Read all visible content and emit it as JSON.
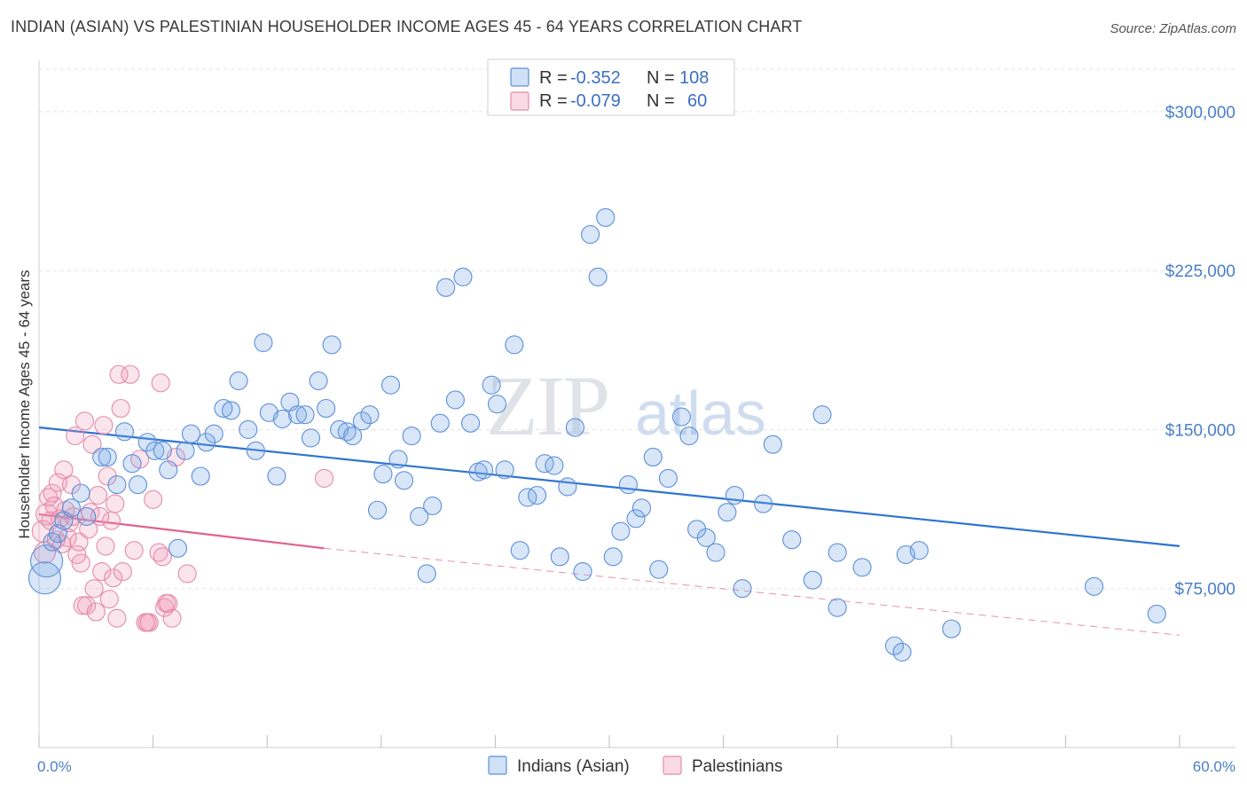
{
  "title": "INDIAN (ASIAN) VS PALESTINIAN HOUSEHOLDER INCOME AGES 45 - 64 YEARS CORRELATION CHART",
  "source": "Source: ZipAtlas.com",
  "watermark": {
    "zip": "ZIP",
    "atlas": "atlas"
  },
  "colors": {
    "blue": "#5b8fd8",
    "blue_fill": "rgba(120,165,230,0.28)",
    "blue_line": "#2f74d0",
    "pink": "#e68aa8",
    "pink_fill": "rgba(240,150,180,0.25)",
    "pink_line": "#e0628c",
    "grid": "#e3e3e3",
    "tick_text": "#4a7fc8"
  },
  "legend_top": {
    "rows": [
      {
        "r_label": "R = ",
        "r_value": "-0.352",
        "n_label": "N = ",
        "n_value": "108"
      },
      {
        "r_label": "R = ",
        "r_value": "-0.079",
        "n_label": "N = ",
        "n_value": "60"
      }
    ]
  },
  "chart_data": {
    "type": "scatter",
    "xlabel": "",
    "ylabel": "Householder Income Ages 45 - 64 years",
    "xlim": [
      0,
      60
    ],
    "ylim": [
      0,
      320000
    ],
    "x_tick_labels": [
      "0.0%",
      "60.0%"
    ],
    "y_ticks": [
      75000,
      150000,
      225000,
      300000
    ],
    "y_tick_labels": [
      "$75,000",
      "$150,000",
      "$225,000",
      "$300,000"
    ],
    "grid": true,
    "legend": "bottom",
    "series": [
      {
        "name": "Indians (Asian)",
        "color": "#5b8fd8",
        "trend": {
          "x": [
            0,
            60
          ],
          "y": [
            151000,
            95000
          ]
        },
        "points": [
          [
            0.4,
            88000,
            18
          ],
          [
            0.3,
            80000,
            18
          ],
          [
            0.7,
            97000,
            10
          ],
          [
            1.0,
            101000,
            10
          ],
          [
            1.3,
            107000,
            10
          ],
          [
            1.7,
            113000,
            10
          ],
          [
            2.2,
            120000,
            10
          ],
          [
            2.5,
            109000,
            10
          ],
          [
            3.3,
            137000,
            10
          ],
          [
            3.6,
            137000,
            10
          ],
          [
            4.1,
            124000,
            10
          ],
          [
            4.5,
            149000,
            10
          ],
          [
            4.9,
            134000,
            10
          ],
          [
            5.2,
            124000,
            10
          ],
          [
            5.7,
            144000,
            10
          ],
          [
            6.1,
            140000,
            10
          ],
          [
            6.5,
            140000,
            10
          ],
          [
            6.8,
            131000,
            10
          ],
          [
            7.3,
            94000,
            10
          ],
          [
            7.7,
            140000,
            10
          ],
          [
            8.0,
            148000,
            10
          ],
          [
            8.5,
            128000,
            10
          ],
          [
            8.8,
            144000,
            10
          ],
          [
            9.2,
            148000,
            10
          ],
          [
            9.7,
            160000,
            10
          ],
          [
            10.1,
            159000,
            10
          ],
          [
            10.5,
            173000,
            10
          ],
          [
            11.0,
            150000,
            10
          ],
          [
            11.4,
            140000,
            10
          ],
          [
            11.8,
            191000,
            10
          ],
          [
            12.1,
            158000,
            10
          ],
          [
            12.5,
            128000,
            10
          ],
          [
            12.8,
            155000,
            10
          ],
          [
            13.2,
            163000,
            10
          ],
          [
            13.6,
            157000,
            10
          ],
          [
            14.0,
            157000,
            10
          ],
          [
            14.3,
            146000,
            10
          ],
          [
            14.7,
            173000,
            10
          ],
          [
            15.1,
            160000,
            10
          ],
          [
            15.4,
            190000,
            10
          ],
          [
            15.8,
            150000,
            10
          ],
          [
            16.2,
            149000,
            10
          ],
          [
            16.5,
            147000,
            10
          ],
          [
            17.0,
            154000,
            10
          ],
          [
            17.4,
            157000,
            10
          ],
          [
            17.8,
            112000,
            10
          ],
          [
            18.1,
            129000,
            10
          ],
          [
            18.5,
            171000,
            10
          ],
          [
            18.9,
            136000,
            10
          ],
          [
            19.2,
            126000,
            10
          ],
          [
            19.6,
            147000,
            10
          ],
          [
            20.0,
            109000,
            10
          ],
          [
            20.4,
            82000,
            10
          ],
          [
            20.7,
            114000,
            10
          ],
          [
            21.1,
            153000,
            10
          ],
          [
            21.4,
            217000,
            10
          ],
          [
            21.9,
            164000,
            10
          ],
          [
            22.3,
            222000,
            10
          ],
          [
            22.7,
            153000,
            10
          ],
          [
            23.1,
            130000,
            10
          ],
          [
            23.4,
            131000,
            10
          ],
          [
            23.8,
            171000,
            10
          ],
          [
            24.1,
            162000,
            10
          ],
          [
            24.5,
            131000,
            10
          ],
          [
            25.0,
            190000,
            10
          ],
          [
            25.3,
            93000,
            10
          ],
          [
            25.7,
            118000,
            10
          ],
          [
            26.2,
            119000,
            10
          ],
          [
            26.6,
            134000,
            10
          ],
          [
            27.1,
            133000,
            10
          ],
          [
            27.4,
            90000,
            10
          ],
          [
            27.8,
            123000,
            10
          ],
          [
            28.2,
            151000,
            10
          ],
          [
            28.6,
            83000,
            10
          ],
          [
            29.0,
            242000,
            10
          ],
          [
            29.4,
            222000,
            10
          ],
          [
            29.8,
            250000,
            10
          ],
          [
            30.2,
            90000,
            10
          ],
          [
            30.6,
            102000,
            10
          ],
          [
            31.0,
            124000,
            10
          ],
          [
            31.4,
            108000,
            10
          ],
          [
            31.7,
            113000,
            10
          ],
          [
            32.3,
            137000,
            10
          ],
          [
            32.6,
            84000,
            10
          ],
          [
            33.1,
            127000,
            10
          ],
          [
            33.8,
            156000,
            10
          ],
          [
            34.2,
            147000,
            10
          ],
          [
            34.6,
            103000,
            10
          ],
          [
            35.1,
            99000,
            10
          ],
          [
            35.6,
            92000,
            10
          ],
          [
            36.2,
            111000,
            10
          ],
          [
            36.6,
            119000,
            10
          ],
          [
            37.0,
            75000,
            10
          ],
          [
            38.1,
            115000,
            10
          ],
          [
            38.6,
            143000,
            10
          ],
          [
            39.6,
            98000,
            10
          ],
          [
            40.7,
            79000,
            10
          ],
          [
            41.2,
            157000,
            10
          ],
          [
            42.0,
            66000,
            10
          ],
          [
            42.0,
            92000,
            10
          ],
          [
            43.3,
            85000,
            10
          ],
          [
            45.0,
            48000,
            10
          ],
          [
            45.4,
            45000,
            10
          ],
          [
            45.6,
            91000,
            10
          ],
          [
            46.3,
            93000,
            10
          ],
          [
            48.0,
            56000,
            10
          ],
          [
            55.5,
            76000,
            10
          ],
          [
            58.8,
            63000,
            10
          ]
        ]
      },
      {
        "name": "Palestinians",
        "color": "#e68aa8",
        "trend": {
          "x": [
            0,
            15
          ],
          "y": [
            110000,
            94000
          ]
        },
        "trend_extended": {
          "x": [
            15,
            60
          ],
          "y": [
            94000,
            53000
          ]
        },
        "points": [
          [
            0.2,
            102000,
            12
          ],
          [
            0.3,
            92000,
            12
          ],
          [
            0.4,
            110000,
            12
          ],
          [
            0.5,
            118000,
            10
          ],
          [
            0.6,
            107000,
            10
          ],
          [
            0.7,
            120000,
            10
          ],
          [
            0.8,
            114000,
            10
          ],
          [
            0.9,
            98000,
            10
          ],
          [
            1.0,
            125000,
            10
          ],
          [
            1.1,
            108000,
            10
          ],
          [
            1.2,
            96000,
            10
          ],
          [
            1.3,
            131000,
            10
          ],
          [
            1.4,
            112000,
            10
          ],
          [
            1.5,
            99000,
            10
          ],
          [
            1.6,
            106000,
            10
          ],
          [
            1.7,
            124000,
            10
          ],
          [
            1.8,
            109000,
            10
          ],
          [
            1.9,
            147000,
            10
          ],
          [
            2.0,
            91000,
            10
          ],
          [
            2.1,
            97000,
            10
          ],
          [
            2.2,
            87000,
            10
          ],
          [
            2.3,
            67000,
            10
          ],
          [
            2.4,
            154000,
            10
          ],
          [
            2.5,
            67000,
            10
          ],
          [
            2.6,
            103000,
            10
          ],
          [
            2.7,
            111000,
            10
          ],
          [
            2.8,
            143000,
            10
          ],
          [
            2.9,
            75000,
            10
          ],
          [
            3.0,
            64000,
            10
          ],
          [
            3.1,
            119000,
            10
          ],
          [
            3.2,
            109000,
            10
          ],
          [
            3.3,
            83000,
            10
          ],
          [
            3.4,
            152000,
            10
          ],
          [
            3.5,
            95000,
            10
          ],
          [
            3.6,
            128000,
            10
          ],
          [
            3.7,
            70000,
            10
          ],
          [
            3.8,
            107000,
            10
          ],
          [
            3.9,
            80000,
            10
          ],
          [
            4.0,
            115000,
            10
          ],
          [
            4.1,
            61000,
            10
          ],
          [
            4.2,
            176000,
            10
          ],
          [
            4.3,
            160000,
            10
          ],
          [
            4.4,
            83000,
            10
          ],
          [
            4.8,
            176000,
            10
          ],
          [
            5.0,
            93000,
            10
          ],
          [
            5.3,
            136000,
            10
          ],
          [
            5.6,
            59000,
            10
          ],
          [
            5.7,
            59000,
            10
          ],
          [
            5.8,
            59000,
            10
          ],
          [
            6.0,
            117000,
            10
          ],
          [
            6.3,
            92000,
            10
          ],
          [
            6.4,
            172000,
            10
          ],
          [
            6.5,
            90000,
            10
          ],
          [
            6.6,
            66000,
            10
          ],
          [
            6.7,
            68000,
            10
          ],
          [
            6.8,
            68000,
            10
          ],
          [
            7.0,
            61000,
            10
          ],
          [
            7.2,
            137000,
            10
          ],
          [
            7.8,
            82000,
            10
          ],
          [
            15.0,
            127000,
            10
          ]
        ]
      }
    ]
  }
}
